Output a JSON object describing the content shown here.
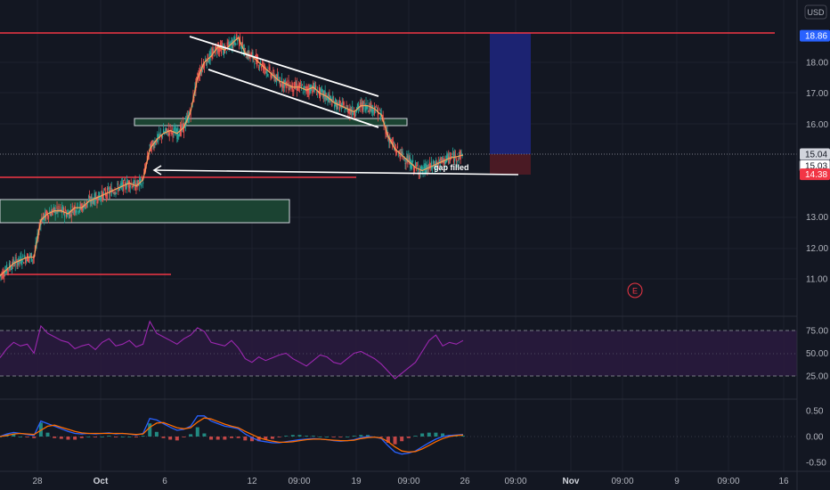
{
  "chart_data": {
    "type": "line",
    "currency": "USD",
    "price_axis": {
      "ticks": [
        "18.00",
        "17.00",
        "16.00",
        "13.00",
        "12.00",
        "11.00"
      ],
      "ylim": [
        10.4,
        19.4
      ],
      "tags": [
        {
          "label": "18.86",
          "value": 18.86,
          "color": "#2962ff",
          "text_color": "#ffffff"
        },
        {
          "label": "15.04",
          "value": 15.04,
          "color": "#d1d4dc",
          "text_color": "#131722"
        },
        {
          "label": "15.03",
          "value": 15.03,
          "color": "#ffffff",
          "text_color": "#131722",
          "outlined": true
        },
        {
          "label": "14.38",
          "value": 14.38,
          "color": "#f23645",
          "text_color": "#ffffff"
        }
      ]
    },
    "time_axis": {
      "labels": [
        "28",
        "Oct",
        "6",
        "12",
        "09:00",
        "19",
        "09:00",
        "26",
        "09:00",
        "Nov",
        "09:00",
        "9",
        "09:00",
        "16"
      ],
      "bold_labels": [
        "Oct",
        "Nov"
      ]
    },
    "price_series": [
      11.1,
      11.3,
      11.5,
      11.6,
      11.7,
      11.7,
      12.9,
      13.1,
      13.2,
      13.2,
      13.1,
      13.3,
      13.3,
      13.5,
      13.6,
      13.7,
      13.8,
      13.9,
      14.0,
      14.1,
      14.0,
      14.2,
      15.2,
      15.5,
      15.7,
      15.8,
      15.7,
      15.9,
      16.4,
      17.5,
      18.0,
      18.2,
      18.5,
      18.4,
      18.6,
      18.8,
      18.3,
      18.2,
      18.0,
      17.8,
      17.6,
      17.4,
      17.3,
      17.2,
      17.2,
      17.1,
      17.2,
      17.0,
      16.9,
      16.7,
      16.6,
      16.5,
      16.4,
      16.6,
      16.6,
      16.5,
      16.3,
      15.6,
      15.2,
      15.0,
      14.8,
      14.6,
      14.5,
      14.6,
      14.7,
      14.8,
      14.9,
      14.95,
      15.0
    ],
    "rsi": {
      "levels": [
        "75.00",
        "50.00",
        "25.00"
      ],
      "bands": [
        70,
        30
      ],
      "values": [
        45,
        55,
        62,
        58,
        60,
        50,
        80,
        72,
        68,
        64,
        62,
        55,
        58,
        60,
        54,
        62,
        66,
        58,
        60,
        64,
        57,
        60,
        85,
        72,
        68,
        64,
        60,
        66,
        70,
        78,
        74,
        62,
        60,
        58,
        64,
        56,
        44,
        40,
        46,
        42,
        45,
        48,
        50,
        44,
        40,
        36,
        42,
        48,
        46,
        40,
        38,
        44,
        50,
        52,
        48,
        44,
        38,
        30,
        22,
        28,
        34,
        40,
        52,
        64,
        70,
        58,
        62,
        60,
        64
      ]
    },
    "macd": {
      "levels": [
        "0.50",
        "0.00",
        "-0.50"
      ],
      "ylim": [
        -0.6,
        0.6
      ],
      "macd_line": [
        0.0,
        0.05,
        0.08,
        0.06,
        0.04,
        0.02,
        0.3,
        0.25,
        0.2,
        0.15,
        0.1,
        0.06,
        0.05,
        0.06,
        0.05,
        0.06,
        0.07,
        0.05,
        0.06,
        0.05,
        0.03,
        0.06,
        0.35,
        0.32,
        0.25,
        0.18,
        0.12,
        0.14,
        0.2,
        0.4,
        0.4,
        0.3,
        0.25,
        0.2,
        0.18,
        0.15,
        0.05,
        -0.02,
        -0.08,
        -0.1,
        -0.12,
        -0.12,
        -0.1,
        -0.08,
        -0.06,
        -0.05,
        -0.04,
        -0.05,
        -0.06,
        -0.08,
        -0.09,
        -0.08,
        -0.06,
        -0.02,
        0.0,
        -0.01,
        -0.04,
        -0.18,
        -0.3,
        -0.34,
        -0.32,
        -0.28,
        -0.2,
        -0.12,
        -0.05,
        0.0,
        0.02,
        0.03,
        0.04
      ],
      "signal_line": [
        0.0,
        0.02,
        0.05,
        0.06,
        0.05,
        0.04,
        0.12,
        0.2,
        0.22,
        0.18,
        0.14,
        0.1,
        0.07,
        0.06,
        0.06,
        0.06,
        0.06,
        0.06,
        0.06,
        0.05,
        0.04,
        0.05,
        0.18,
        0.26,
        0.27,
        0.22,
        0.17,
        0.15,
        0.17,
        0.28,
        0.36,
        0.34,
        0.29,
        0.24,
        0.2,
        0.17,
        0.1,
        0.04,
        -0.02,
        -0.06,
        -0.09,
        -0.11,
        -0.11,
        -0.1,
        -0.08,
        -0.06,
        -0.05,
        -0.05,
        -0.06,
        -0.07,
        -0.08,
        -0.08,
        -0.07,
        -0.04,
        -0.02,
        -0.01,
        -0.03,
        -0.1,
        -0.2,
        -0.28,
        -0.3,
        -0.29,
        -0.24,
        -0.17,
        -0.1,
        -0.04,
        0.0,
        0.02,
        0.03
      ]
    },
    "horizontal_levels": [
      18.86,
      14.38,
      11.1
    ],
    "zones": [
      {
        "name": "demand-zone-lower",
        "from": 13.2,
        "to": 12.85,
        "color": "#1b4332"
      },
      {
        "name": "demand-zone-upper",
        "from": 16.1,
        "to": 15.95,
        "color": "#1b4332"
      }
    ],
    "position_tool": {
      "entry": 15.04,
      "target": 18.86,
      "stop": 14.38
    },
    "annotations": [
      {
        "text": "gap filled"
      }
    ],
    "earnings_marker": "E",
    "colors": {
      "bull": "#26a69a",
      "bear": "#ef5350",
      "ma": "#f7a35c",
      "rsi": "#9c27b0",
      "macd": "#2962ff",
      "signal": "#ff6d00",
      "level": "#f23645"
    }
  }
}
